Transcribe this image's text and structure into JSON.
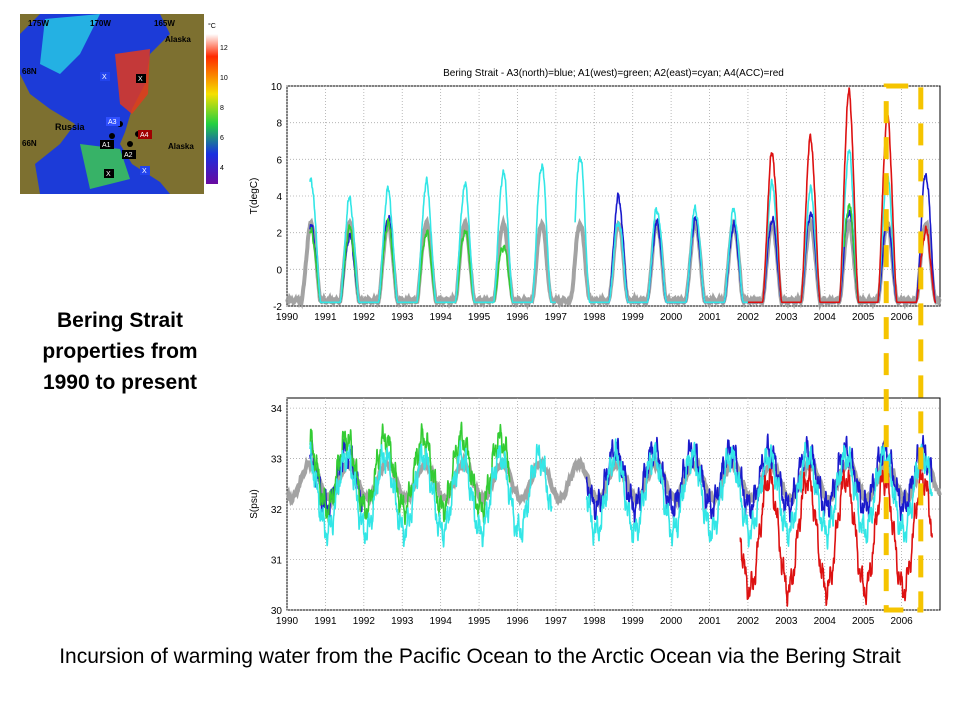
{
  "side_title": "Bering Strait properties from 1990 to present",
  "caption": "Incursion of warming water from the Pacific Ocean to the Arctic Ocean via the Bering Strait",
  "map": {
    "labels": {
      "lon_175w": "175W",
      "lon_170w": "170W",
      "lon_165w": "165W",
      "lat_68n": "68N",
      "lat_66n": "66N",
      "alaska_north": "Alaska",
      "alaska_south": "Alaska",
      "russia": "Russia",
      "a1": "A1",
      "a2": "A2",
      "a3": "A3",
      "a4": "A4",
      "x": "X",
      "unit": "°C"
    },
    "colorbar_ticks": [
      "12",
      "10",
      "8",
      "6",
      "4"
    ]
  },
  "colors": {
    "A3": "#1a1acc",
    "A1": "#33cc33",
    "A2": "#33e6e6",
    "A4": "#dd1111",
    "climatology": "#999999",
    "highlight": "#f5c400"
  },
  "chart_data": [
    {
      "type": "line",
      "title": "Bering Strait - A3(north)=blue; A1(west)=green; A2(east)=cyan; A4(ACC)=red",
      "ylabel": "T(degC)",
      "xlabel": "",
      "xlim": [
        1990,
        2007
      ],
      "ylim": [
        -2,
        10
      ],
      "yticks": [
        "10",
        "8",
        "6",
        "4",
        "2",
        "0",
        "-2"
      ],
      "xticks": [
        "1990",
        "1991",
        "1992",
        "1993",
        "1994",
        "1995",
        "1996",
        "1997",
        "1998",
        "1999",
        "2000",
        "2001",
        "2002",
        "2003",
        "2004",
        "2005",
        "2006"
      ],
      "grid": true,
      "highlight_region": [
        2005.6,
        2006.5
      ],
      "series": [
        {
          "name": "A3(north)",
          "color_key": "A3",
          "years": [
            1990.6,
            1998.0,
            1998.3,
            1998.9,
            1999.0,
            2006.9
          ],
          "peaks": {
            "1990": 2.3,
            "1991": 1.8,
            "1992": 2.8,
            "1998": 3.9,
            "1999": 2.5,
            "2000": 2.7,
            "2001": 2.4,
            "2002": 2.7,
            "2003": 3.1,
            "2004": 3.2,
            "2005": 2.5,
            "2006": 5.2
          }
        },
        {
          "name": "A1(west)",
          "color_key": "A1",
          "years": [
            1990.6,
            1995.9,
            2004.5,
            2005.0
          ],
          "peaks": {
            "1990": 2.0,
            "1991": 2.2,
            "1992": 2.5,
            "1993": 2.0,
            "1994": 2.1,
            "1995": 1.3,
            "2004": 3.5
          }
        },
        {
          "name": "A2(east)",
          "color_key": "A2",
          "years": [
            1990.6,
            1997.0,
            1997.5,
            2005.9
          ],
          "peaks": {
            "1990": 4.8,
            "1991": 3.8,
            "1992": 4.3,
            "1993": 4.7,
            "1994": 4.6,
            "1995": 5.3,
            "1996": 5.7,
            "1997": 6.2,
            "1998": 2.6,
            "1999": 3.3,
            "2000": 3.3,
            "2001": 3.2,
            "2002": 4.6,
            "2003": 4.3,
            "2004": 6.4,
            "2005": 5.0
          }
        },
        {
          "name": "A4(ACC)",
          "color_key": "A4",
          "years": [
            2002.0,
            2006.9
          ],
          "peaks": {
            "2002": 6.3,
            "2003": 7.1,
            "2004": 9.6,
            "2005": 8.3,
            "2006": 2.1
          }
        }
      ]
    },
    {
      "type": "line",
      "title": "",
      "ylabel": "S(psu)",
      "xlabel": "",
      "xlim": [
        1990,
        2007
      ],
      "ylim": [
        30,
        34.2
      ],
      "yticks": [
        "34",
        "33",
        "32",
        "31",
        "30"
      ],
      "xticks": [
        "1990",
        "1991",
        "1992",
        "1993",
        "1994",
        "1995",
        "1996",
        "1997",
        "1998",
        "1999",
        "2000",
        "2001",
        "2002",
        "2003",
        "2004",
        "2005",
        "2006"
      ],
      "grid": true,
      "highlight_region": [
        2005.6,
        2006.5
      ],
      "series": [
        {
          "name": "A3(north)",
          "color_key": "A3",
          "mean": 32.6,
          "amplitude": 0.55,
          "years": [
            1990.6,
            1992.0,
            1997.8,
            2006.8
          ]
        },
        {
          "name": "A1(west)",
          "color_key": "A1",
          "mean": 32.7,
          "amplitude": 0.7,
          "years": [
            1990.6,
            1995.8
          ]
        },
        {
          "name": "A2(east)",
          "color_key": "A2",
          "mean": 32.3,
          "amplitude": 0.75,
          "years": [
            1990.6,
            1996.9,
            1997.8,
            2006.8
          ]
        },
        {
          "name": "A4(ACC)",
          "color_key": "A4",
          "mean": 31.5,
          "amplitude": 1.1,
          "years": [
            2001.8,
            2006.8
          ]
        }
      ]
    }
  ]
}
